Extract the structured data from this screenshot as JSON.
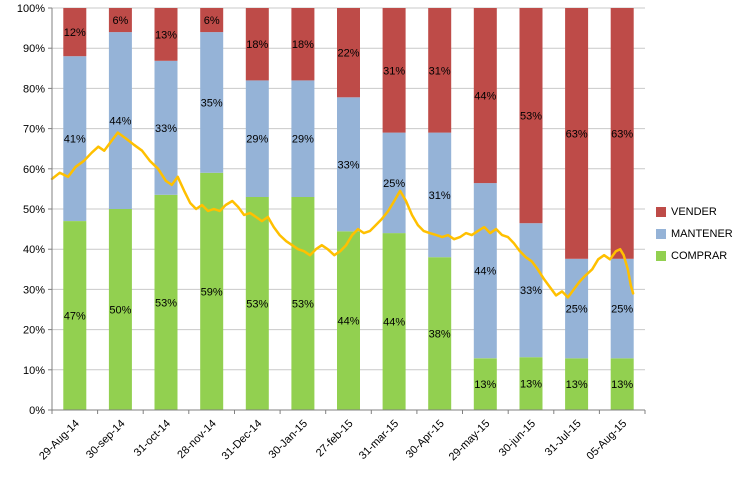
{
  "chart_data": {
    "type": "bar",
    "stacking": "percent",
    "title": "",
    "xlabel": "",
    "ylabel": "",
    "ylim": [
      0,
      100
    ],
    "yticks": [
      0,
      10,
      20,
      30,
      40,
      50,
      60,
      70,
      80,
      90,
      100
    ],
    "ytick_suffix": "%",
    "grid": true,
    "legend_position": "right",
    "categories": [
      "29-Aug-14",
      "30-sep-14",
      "31-oct-14",
      "28-nov-14",
      "31-Dec-14",
      "30-Jan-15",
      "27-feb-15",
      "31-mar-15",
      "30-Apr-15",
      "29-may-15",
      "30-jun-15",
      "31-Jul-15",
      "05-Aug-15"
    ],
    "series": [
      {
        "name": "COMPRAR",
        "color": "#92D050",
        "values": [
          47,
          50,
          53,
          59,
          53,
          53,
          44,
          44,
          38,
          13,
          13,
          13,
          13
        ]
      },
      {
        "name": "MANTENER",
        "color": "#95B3D7",
        "values": [
          41,
          44,
          33,
          35,
          29,
          29,
          33,
          25,
          31,
          44,
          33,
          25,
          25
        ]
      },
      {
        "name": "VENDER",
        "color": "#BE4B48",
        "values": [
          12,
          6,
          13,
          6,
          18,
          18,
          22,
          31,
          31,
          44,
          53,
          63,
          63
        ]
      }
    ],
    "bar_label_suffix": "%",
    "line_overlay": {
      "name": "price-line",
      "color": "#FFC000",
      "points": [
        [
          0.0,
          57.5
        ],
        [
          0.013,
          59
        ],
        [
          0.027,
          58
        ],
        [
          0.04,
          60.5
        ],
        [
          0.054,
          62
        ],
        [
          0.067,
          64
        ],
        [
          0.078,
          65.5
        ],
        [
          0.088,
          64.5
        ],
        [
          0.098,
          66.5
        ],
        [
          0.111,
          69
        ],
        [
          0.125,
          67.5
        ],
        [
          0.138,
          66
        ],
        [
          0.152,
          64.5
        ],
        [
          0.165,
          62
        ],
        [
          0.179,
          60
        ],
        [
          0.192,
          57
        ],
        [
          0.202,
          56
        ],
        [
          0.212,
          58
        ],
        [
          0.223,
          54.5
        ],
        [
          0.233,
          51.5
        ],
        [
          0.243,
          50
        ],
        [
          0.253,
          51
        ],
        [
          0.263,
          49.5
        ],
        [
          0.273,
          50
        ],
        [
          0.283,
          49.5
        ],
        [
          0.293,
          51
        ],
        [
          0.304,
          52
        ],
        [
          0.314,
          50.5
        ],
        [
          0.324,
          48.5
        ],
        [
          0.334,
          49
        ],
        [
          0.344,
          48
        ],
        [
          0.354,
          47
        ],
        [
          0.364,
          48
        ],
        [
          0.374,
          45.5
        ],
        [
          0.384,
          43.5
        ],
        [
          0.395,
          42
        ],
        [
          0.405,
          41
        ],
        [
          0.415,
          40
        ],
        [
          0.425,
          39.5
        ],
        [
          0.435,
          38.5
        ],
        [
          0.445,
          40
        ],
        [
          0.455,
          41
        ],
        [
          0.465,
          40
        ],
        [
          0.476,
          38.5
        ],
        [
          0.486,
          39.5
        ],
        [
          0.496,
          41
        ],
        [
          0.506,
          43.5
        ],
        [
          0.516,
          45
        ],
        [
          0.526,
          44
        ],
        [
          0.536,
          44.5
        ],
        [
          0.546,
          46
        ],
        [
          0.556,
          47.5
        ],
        [
          0.567,
          49.5
        ],
        [
          0.577,
          52
        ],
        [
          0.587,
          54.5
        ],
        [
          0.597,
          52
        ],
        [
          0.607,
          48.5
        ],
        [
          0.617,
          46
        ],
        [
          0.627,
          44.5
        ],
        [
          0.637,
          44
        ],
        [
          0.648,
          43.5
        ],
        [
          0.658,
          43
        ],
        [
          0.668,
          43.5
        ],
        [
          0.678,
          42.5
        ],
        [
          0.688,
          43
        ],
        [
          0.698,
          44
        ],
        [
          0.708,
          43.5
        ],
        [
          0.718,
          44.5
        ],
        [
          0.729,
          45.5
        ],
        [
          0.739,
          44
        ],
        [
          0.749,
          45
        ],
        [
          0.759,
          43.5
        ],
        [
          0.769,
          43
        ],
        [
          0.779,
          41.5
        ],
        [
          0.789,
          39.5
        ],
        [
          0.799,
          38
        ],
        [
          0.809,
          37
        ],
        [
          0.819,
          35
        ],
        [
          0.83,
          32.5
        ],
        [
          0.84,
          30.5
        ],
        [
          0.85,
          28.5
        ],
        [
          0.86,
          29.5
        ],
        [
          0.87,
          28
        ],
        [
          0.88,
          30
        ],
        [
          0.89,
          32
        ],
        [
          0.9,
          33.5
        ],
        [
          0.911,
          35
        ],
        [
          0.921,
          37.5
        ],
        [
          0.931,
          38.5
        ],
        [
          0.941,
          37.5
        ],
        [
          0.951,
          39.5
        ],
        [
          0.958,
          40
        ],
        [
          0.964,
          38.5
        ],
        [
          0.971,
          35
        ],
        [
          0.976,
          31
        ],
        [
          0.98,
          29
        ]
      ]
    }
  },
  "legend": {
    "items": [
      {
        "label": "VENDER",
        "color": "#BE4B48"
      },
      {
        "label": "MANTENER",
        "color": "#95B3D7"
      },
      {
        "label": "COMPRAR",
        "color": "#92D050"
      }
    ]
  }
}
